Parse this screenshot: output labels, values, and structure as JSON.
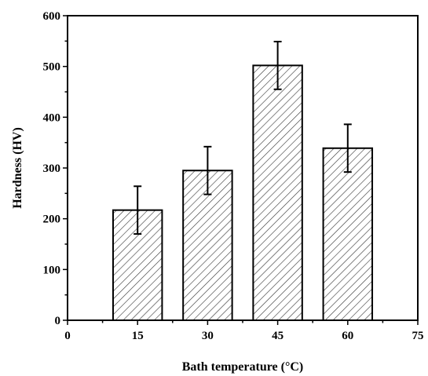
{
  "chart_data": {
    "type": "bar",
    "xlabel": "Bath temperature (°C)",
    "ylabel": "Hardness (HV)",
    "xlim": [
      0,
      75
    ],
    "ylim": [
      0,
      600
    ],
    "x_ticks": [
      "0",
      "15",
      "30",
      "45",
      "60",
      "75"
    ],
    "y_ticks": [
      "0",
      "100",
      "200",
      "300",
      "400",
      "500",
      "600"
    ],
    "bar_width": 10.5,
    "series": [
      {
        "x": [
          15,
          30,
          45,
          60
        ],
        "values": [
          217,
          295,
          502,
          339
        ],
        "error": [
          47,
          47,
          47,
          47
        ]
      }
    ],
    "bar_fill": "hatched",
    "bar_color": "#000000",
    "grid": false,
    "legend": "none"
  }
}
